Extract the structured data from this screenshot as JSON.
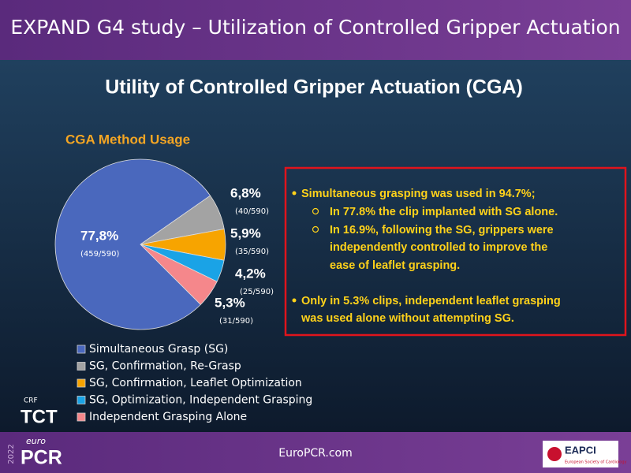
{
  "header": {
    "title": "EXPAND G4 study – Utilization of Controlled Gripper Actuation"
  },
  "chart_data": {
    "type": "pie",
    "title": "Utility of Controlled Gripper Actuation (CGA)",
    "subtitle": "CGA Method Usage",
    "categories": [
      "Simultaneous Grasp (SG)",
      "SG, Confirmation, Re-Grasp",
      "SG, Confirmation, Leaflet Optimization",
      "SG, Optimization, Independent Grasping",
      "Independent Grasping Alone"
    ],
    "values": [
      77.8,
      6.8,
      5.9,
      4.2,
      5.3
    ],
    "value_labels": [
      "77,8%",
      "6,8%",
      "5,9%",
      "4,2%",
      "5,3%"
    ],
    "count_labels": [
      "(459/590)",
      "(40/590)",
      "(35/590)",
      "(25/590)",
      "(31/590)"
    ],
    "colors": [
      "#4a68bd",
      "#a3a3a3",
      "#f7a400",
      "#1aa3e6",
      "#f5878b"
    ]
  },
  "callout": {
    "items": [
      {
        "lines": [
          "Simultaneous grasping was used in 94.7%;"
        ],
        "subitems": [
          {
            "lines": [
              "In 77.8% the clip implanted with SG alone."
            ]
          },
          {
            "lines": [
              "In 16.9%, following the SG, grippers were",
              "independently controlled to improve the",
              "ease of leaflet grasping."
            ]
          }
        ]
      },
      {
        "lines": [
          "Only in 5.3% clips, independent leaflet grasping",
          "was used alone without attempting SG."
        ]
      }
    ]
  },
  "footer": {
    "url": "EuroPCR.com",
    "logo_year": "2022",
    "logo_small": "euro",
    "logo_big": "PCR",
    "tct_small": "CRF",
    "tct_big": "TCT",
    "eapci": "EAPCI",
    "eapci_sub": "European Society of Cardiology"
  }
}
